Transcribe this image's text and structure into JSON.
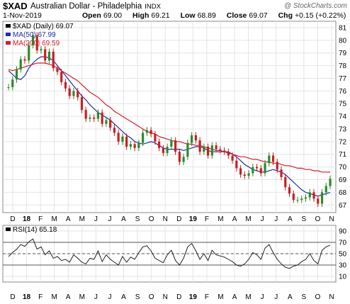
{
  "header": {
    "symbol": "$XAD",
    "title": "Australian Dollar - Philadelphia",
    "exchange": "INDX",
    "watermark": "@ StockCharts.com",
    "date": "1-Nov-2019",
    "open_label": "Open",
    "open": "69.00",
    "high_label": "High",
    "high": "69.21",
    "low_label": "Low",
    "low": "68.89",
    "close_label": "Close",
    "close": "69.07",
    "chg_label": "Chg",
    "chg": "+0.15 (+0.22%)"
  },
  "colors": {
    "up_candle": "#2a8a2a",
    "down_candle": "#c81e1e",
    "ma50": "#1f2fa8",
    "ma200": "#d0202a",
    "rsi_line": "#222222",
    "grid": "#e4e4e4"
  },
  "chart_data": [
    {
      "type": "line",
      "panel": "price",
      "legend": [
        {
          "name": "$XAD (Daily) 69.07",
          "color": "#000000"
        },
        {
          "name": "MA(50) 67.99",
          "color": "#1f2fa8"
        },
        {
          "name": "MA(200) 69.59",
          "color": "#d0202a"
        }
      ],
      "legend_placement": "top-left",
      "ylim": [
        66.4,
        81.5
      ],
      "yticks": [
        67,
        68,
        69,
        70,
        71,
        72,
        73,
        74,
        75,
        76,
        77,
        78,
        79,
        80,
        81
      ],
      "x_labels": [
        "D",
        "18",
        "F",
        "M",
        "A",
        "M",
        "J",
        "J",
        "A",
        "S",
        "O",
        "N",
        "D",
        "19",
        "F",
        "M",
        "A",
        "M",
        "J",
        "J",
        "A",
        "S",
        "O",
        "N"
      ],
      "grid": true,
      "series": [
        {
          "name": "$XAD (Daily) 69.07",
          "values": [
            76.3,
            76.9,
            77.7,
            78.5,
            78.4,
            79.6,
            80.4,
            79.2,
            79.3,
            78.4,
            79.1,
            77.8,
            77.5,
            76.7,
            76.2,
            75.6,
            76.0,
            75.5,
            74.5,
            73.8,
            73.9,
            73.8,
            74.3,
            73.4,
            73.7,
            73.1,
            72.7,
            72.0,
            72.4,
            71.6,
            71.8,
            71.5,
            71.9,
            72.7,
            72.9,
            72.6,
            72.0,
            71.5,
            71.1,
            71.6,
            72.1,
            71.2,
            70.4,
            70.8,
            71.9,
            72.5,
            72.1,
            71.2,
            71.6,
            70.9,
            71.7,
            71.4,
            71.3,
            71.2,
            70.9,
            70.5,
            69.9,
            69.4,
            69.3,
            69.5,
            70.0,
            69.9,
            69.5,
            70.3,
            70.9,
            70.4,
            69.8,
            69.2,
            68.4,
            67.9,
            67.4,
            67.4,
            67.5,
            67.6,
            68.0,
            67.5,
            67.1,
            68.0,
            68.5,
            69.07
          ]
        },
        {
          "name": "MA(50) 67.99",
          "values": [
            77.6,
            77.3,
            77.0,
            76.9,
            77.2,
            77.8,
            78.2,
            78.5,
            78.7,
            78.7,
            78.6,
            78.4,
            78.0,
            77.6,
            77.2,
            76.8,
            76.4,
            76.0,
            75.6,
            75.3,
            74.9,
            74.6,
            74.3,
            74.1,
            73.9,
            73.7,
            73.4,
            73.1,
            72.8,
            72.5,
            72.3,
            72.0,
            71.9,
            71.8,
            71.9,
            72.0,
            71.9,
            71.7,
            71.5,
            71.4,
            71.4,
            71.4,
            71.4,
            71.3,
            71.4,
            71.5,
            71.6,
            71.6,
            71.5,
            71.3,
            71.2,
            71.2,
            71.2,
            71.2,
            71.2,
            71.0,
            70.8,
            70.5,
            70.2,
            70.0,
            69.8,
            69.7,
            69.6,
            69.6,
            69.7,
            69.8,
            69.7,
            69.6,
            69.4,
            69.1,
            68.8,
            68.5,
            68.2,
            68.0,
            67.9,
            67.8,
            67.7,
            67.8,
            67.9,
            67.99
          ]
        },
        {
          "name": "MA(200) 69.59",
          "values": [
            77.7,
            77.6,
            77.7,
            77.8,
            77.9,
            78.0,
            78.1,
            78.2,
            78.2,
            78.2,
            78.1,
            78.0,
            77.8,
            77.6,
            77.4,
            77.2,
            77.0,
            76.8,
            76.5,
            76.2,
            75.9,
            75.7,
            75.5,
            75.2,
            74.9,
            74.7,
            74.4,
            74.2,
            74.0,
            73.8,
            73.6,
            73.4,
            73.2,
            73.0,
            72.8,
            72.7,
            72.6,
            72.4,
            72.3,
            72.2,
            72.1,
            72.0,
            72.0,
            71.9,
            71.8,
            71.8,
            71.7,
            71.7,
            71.6,
            71.5,
            71.4,
            71.3,
            71.3,
            71.2,
            71.1,
            71.0,
            70.9,
            70.8,
            70.8,
            70.7,
            70.6,
            70.6,
            70.5,
            70.4,
            70.4,
            70.3,
            70.3,
            70.2,
            70.1,
            70.1,
            70.0,
            69.9,
            69.9,
            69.8,
            69.8,
            69.7,
            69.7,
            69.6,
            69.6,
            69.59
          ]
        }
      ]
    },
    {
      "type": "line",
      "panel": "indicator",
      "legend": [
        {
          "name": "RSI(14) 65.18",
          "color": "#000000"
        }
      ],
      "legend_placement": "top-left",
      "ylim": [
        0,
        100
      ],
      "yticks": [
        10,
        30,
        50,
        70,
        90
      ],
      "reference_lines": [
        30,
        50,
        70
      ],
      "x_labels": [
        "D",
        "18",
        "F",
        "M",
        "A",
        "M",
        "J",
        "J",
        "A",
        "S",
        "O",
        "N",
        "D",
        "19",
        "F",
        "M",
        "A",
        "M",
        "J",
        "J",
        "A",
        "S",
        "O",
        "N"
      ],
      "grid": true,
      "series": [
        {
          "name": "RSI(14) 65.18",
          "values": [
            45,
            52,
            58,
            66,
            63,
            71,
            76,
            58,
            62,
            48,
            55,
            42,
            45,
            38,
            40,
            35,
            48,
            42,
            35,
            32,
            42,
            40,
            55,
            36,
            48,
            40,
            35,
            30,
            45,
            35,
            44,
            40,
            52,
            62,
            64,
            55,
            42,
            38,
            34,
            48,
            56,
            38,
            30,
            42,
            62,
            68,
            55,
            40,
            50,
            38,
            56,
            48,
            46,
            44,
            40,
            36,
            30,
            28,
            32,
            40,
            52,
            48,
            40,
            60,
            66,
            52,
            40,
            32,
            26,
            24,
            28,
            30,
            36,
            40,
            50,
            38,
            32,
            56,
            62,
            65.18
          ]
        }
      ]
    }
  ]
}
